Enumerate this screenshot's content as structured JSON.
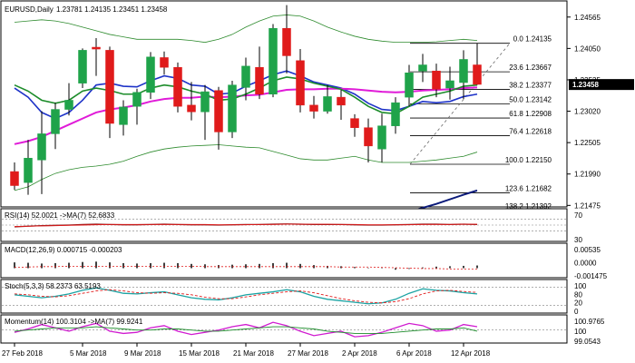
{
  "header": {
    "symbol": "EURUSD,Daily",
    "ohlc": "1.23781 1.24135 1.23451 1.23458"
  },
  "colors": {
    "bull": "#1fa34a",
    "bear": "#e01b1b",
    "ma_blue": "#1e33c8",
    "ma_magenta": "#e01bd8",
    "ma_green": "#1c8c2a",
    "bollinger": "#2e8b2e",
    "navy_line": "#0b1a7a",
    "price_box": "#000000",
    "grid": "#808080",
    "rsi_line": "#8b1a1a",
    "stoch_main": "#1aa3a3",
    "stoch_signal": "#e01b1b",
    "mom_main": "#d01bd0",
    "mom_signal": "#1c8c2a"
  },
  "chart_data": [
    {
      "type": "candlestick",
      "title": "EURUSD,Daily",
      "ylim": [
        1.2148,
        1.248
      ],
      "price_ticks": [
        1.24565,
        1.2405,
        1.23535,
        1.2302,
        1.22505,
        1.2199,
        1.21475
      ],
      "current_price": "1.23458",
      "date_labels": [
        {
          "label": "27 Feb 2018",
          "index": 0
        },
        {
          "label": "5 Mar 2018",
          "index": 5
        },
        {
          "label": "9 Mar 2018",
          "index": 9
        },
        {
          "label": "15 Mar 2018",
          "index": 13
        },
        {
          "label": "21 Mar 2018",
          "index": 17
        },
        {
          "label": "27 Mar 2018",
          "index": 21
        },
        {
          "label": "2 Apr 2018",
          "index": 25
        },
        {
          "label": "6 Apr 2018",
          "index": 29
        },
        {
          "label": "12 Apr 2018",
          "index": 33
        }
      ],
      "candles": [
        {
          "o": 1.2203,
          "h": 1.2218,
          "l": 1.2173,
          "c": 1.218
        },
        {
          "o": 1.2185,
          "h": 1.2255,
          "l": 1.2165,
          "c": 1.2225
        },
        {
          "o": 1.2222,
          "h": 1.2302,
          "l": 1.2166,
          "c": 1.2265
        },
        {
          "o": 1.2265,
          "h": 1.2316,
          "l": 1.224,
          "c": 1.2305
        },
        {
          "o": 1.2305,
          "h": 1.2348,
          "l": 1.2295,
          "c": 1.232
        },
        {
          "o": 1.2348,
          "h": 1.2405,
          "l": 1.234,
          "c": 1.2402
        },
        {
          "o": 1.2407,
          "h": 1.2422,
          "l": 1.236,
          "c": 1.2404
        },
        {
          "o": 1.2402,
          "h": 1.2408,
          "l": 1.2258,
          "c": 1.2282
        },
        {
          "o": 1.228,
          "h": 1.232,
          "l": 1.2262,
          "c": 1.2309
        },
        {
          "o": 1.231,
          "h": 1.2339,
          "l": 1.228,
          "c": 1.2333
        },
        {
          "o": 1.2333,
          "h": 1.2399,
          "l": 1.2322,
          "c": 1.2391
        },
        {
          "o": 1.239,
          "h": 1.24,
          "l": 1.2362,
          "c": 1.2374
        },
        {
          "o": 1.2374,
          "h": 1.2382,
          "l": 1.23,
          "c": 1.231
        },
        {
          "o": 1.2312,
          "h": 1.235,
          "l": 1.2287,
          "c": 1.2301
        },
        {
          "o": 1.2301,
          "h": 1.2345,
          "l": 1.2255,
          "c": 1.2334
        },
        {
          "o": 1.2336,
          "h": 1.2342,
          "l": 1.2239,
          "c": 1.2268
        },
        {
          "o": 1.2268,
          "h": 1.2352,
          "l": 1.2258,
          "c": 1.2345
        },
        {
          "o": 1.2341,
          "h": 1.239,
          "l": 1.232,
          "c": 1.2376
        },
        {
          "o": 1.2374,
          "h": 1.2408,
          "l": 1.2322,
          "c": 1.233
        },
        {
          "o": 1.233,
          "h": 1.2445,
          "l": 1.2325,
          "c": 1.2438
        },
        {
          "o": 1.2438,
          "h": 1.2476,
          "l": 1.2364,
          "c": 1.2393
        },
        {
          "o": 1.2385,
          "h": 1.2404,
          "l": 1.23,
          "c": 1.2312
        },
        {
          "o": 1.2312,
          "h": 1.2327,
          "l": 1.229,
          "c": 1.2302
        },
        {
          "o": 1.2302,
          "h": 1.2345,
          "l": 1.2298,
          "c": 1.2326
        },
        {
          "o": 1.2325,
          "h": 1.2337,
          "l": 1.2288,
          "c": 1.2312
        },
        {
          "o": 1.229,
          "h": 1.2297,
          "l": 1.226,
          "c": 1.2275
        },
        {
          "o": 1.2275,
          "h": 1.229,
          "l": 1.2218,
          "c": 1.2245
        },
        {
          "o": 1.224,
          "h": 1.2298,
          "l": 1.2218,
          "c": 1.2278
        },
        {
          "o": 1.2278,
          "h": 1.2325,
          "l": 1.2265,
          "c": 1.2316
        },
        {
          "o": 1.2325,
          "h": 1.2378,
          "l": 1.231,
          "c": 1.2365
        },
        {
          "o": 1.2368,
          "h": 1.2396,
          "l": 1.235,
          "c": 1.2378
        },
        {
          "o": 1.2368,
          "h": 1.238,
          "l": 1.2325,
          "c": 1.2338
        },
        {
          "o": 1.234,
          "h": 1.2375,
          "l": 1.2321,
          "c": 1.2352
        },
        {
          "o": 1.2349,
          "h": 1.2402,
          "l": 1.2322,
          "c": 1.2387
        },
        {
          "o": 1.2378,
          "h": 1.2413,
          "l": 1.2345,
          "c": 1.2346
        }
      ],
      "overlays": [
        {
          "name": "ma_blue",
          "color": "#1e33c8",
          "values": [
            1.234,
            1.2325,
            1.23,
            1.229,
            1.23,
            1.232,
            1.2345,
            1.2348,
            1.2343,
            1.2342,
            1.2352,
            1.236,
            1.2356,
            1.2345,
            1.2343,
            1.233,
            1.2332,
            1.2343,
            1.2352,
            1.2362,
            1.2368,
            1.236,
            1.235,
            1.2345,
            1.234,
            1.233,
            1.2315,
            1.2305,
            1.2303,
            1.231,
            1.2318,
            1.2316,
            1.2318,
            1.2326,
            1.233
          ]
        },
        {
          "name": "ma_magenta",
          "color": "#e01bd8",
          "values": [
            1.2248,
            1.2253,
            1.226,
            1.227,
            1.228,
            1.229,
            1.23,
            1.2305,
            1.2308,
            1.2312,
            1.2318,
            1.2322,
            1.2324,
            1.2324,
            1.2326,
            1.2325,
            1.2326,
            1.2328,
            1.2329,
            1.2333,
            1.2337,
            1.2338,
            1.2338,
            1.2339,
            1.2339,
            1.2338,
            1.2336,
            1.2334,
            1.2333,
            1.2334,
            1.2336,
            1.2337,
            1.2338,
            1.234,
            1.2341
          ]
        },
        {
          "name": "ma_green",
          "color": "#1c8c2a",
          "values": [
            1.2345,
            1.2335,
            1.232,
            1.2315,
            1.232,
            1.2335,
            1.234,
            1.2336,
            1.233,
            1.233,
            1.234,
            1.2345,
            1.2342,
            1.2335,
            1.233,
            1.232,
            1.2322,
            1.233,
            1.234,
            1.2352,
            1.2358,
            1.2355,
            1.2348,
            1.2343,
            1.2338,
            1.2325,
            1.231,
            1.23,
            1.2298,
            1.231,
            1.2325,
            1.233,
            1.2335,
            1.2343,
            1.2345
          ]
        },
        {
          "name": "bollinger_upper",
          "color": "#2e8b2e",
          "values": [
            1.2448,
            1.245,
            1.2452,
            1.245,
            1.2446,
            1.244,
            1.2434,
            1.2428,
            1.2424,
            1.242,
            1.242,
            1.242,
            1.242,
            1.2418,
            1.2415,
            1.242,
            1.2428,
            1.244,
            1.245,
            1.2458,
            1.246,
            1.2458,
            1.245,
            1.244,
            1.2432,
            1.2425,
            1.242,
            1.2417,
            1.2415,
            1.2415,
            1.2415,
            1.2416,
            1.2418,
            1.242,
            1.2418
          ]
        },
        {
          "name": "bollinger_lower",
          "color": "#2e8b2e",
          "values": [
            1.2172,
            1.2178,
            1.219,
            1.22,
            1.2206,
            1.221,
            1.2212,
            1.2215,
            1.222,
            1.2228,
            1.2235,
            1.224,
            1.2243,
            1.2245,
            1.2246,
            1.2247,
            1.2245,
            1.2243,
            1.2242,
            1.2236,
            1.223,
            1.2224,
            1.2222,
            1.2222,
            1.2225,
            1.2228,
            1.2222,
            1.2218,
            1.2218,
            1.2218,
            1.222,
            1.2222,
            1.2225,
            1.2228,
            1.2235
          ]
        }
      ],
      "navy_line": {
        "color": "#0b1a7a",
        "points": [
          [
            29,
            1.2137
          ],
          [
            31,
            1.215
          ],
          [
            33,
            1.2165
          ],
          [
            34,
            1.2172
          ]
        ]
      },
      "fib_levels": [
        {
          "label": "0.0",
          "value": 1.24135,
          "text": "1.24135"
        },
        {
          "label": "23.6",
          "value": 1.23667,
          "text": "1.23667"
        },
        {
          "label": "38.2",
          "value": 1.23377,
          "text": "1.23377"
        },
        {
          "label": "50.0",
          "value": 1.23142,
          "text": "1.23142"
        },
        {
          "label": "61.8",
          "value": 1.22908,
          "text": "1.22908"
        },
        {
          "label": "76.4",
          "value": 1.22618,
          "text": "1.22618"
        },
        {
          "label": "100.0",
          "value": 1.2215,
          "text": "1.22150"
        },
        {
          "label": "123.6",
          "value": 1.21682,
          "text": "1.21682"
        },
        {
          "label": "138.2",
          "value": 1.21392,
          "text": "1.21392"
        }
      ]
    },
    {
      "type": "line",
      "title": "RSI(14) 52.0021 ->MA(7) 52.6833",
      "ylim": [
        0,
        100
      ],
      "ticks": [
        "70",
        "30"
      ],
      "levels": [
        70,
        50,
        30
      ],
      "series": [
        {
          "color": "#8b1a1a",
          "values": [
            44,
            46,
            48,
            49,
            50,
            52,
            53,
            52,
            51,
            51,
            52,
            53,
            52,
            51,
            51,
            50,
            51,
            52,
            52,
            53,
            54,
            53,
            52,
            52,
            52,
            51,
            50,
            50,
            51,
            52,
            53,
            53,
            52,
            53,
            52
          ]
        },
        {
          "color": "#e01b1b",
          "values": [
            45,
            46,
            47,
            48,
            49,
            50,
            51,
            52,
            52,
            52,
            52,
            52,
            52,
            52,
            52,
            51,
            51,
            51,
            52,
            52,
            53,
            53,
            53,
            53,
            52,
            52,
            51,
            51,
            51,
            51,
            52,
            52,
            52,
            53,
            53
          ]
        }
      ]
    },
    {
      "type": "bar",
      "title": "MACD(12,26,9) 0.000715 -0.000203",
      "ylim": [
        -0.002,
        0.006
      ],
      "ticks": [
        "0.00535",
        "0.0000",
        "-0.001475"
      ],
      "values": [
        0.0015,
        0.0014,
        0.0012,
        0.0013,
        0.0014,
        0.0016,
        0.0017,
        0.0015,
        0.0013,
        0.0012,
        0.0013,
        0.0014,
        0.0013,
        0.0011,
        0.001,
        0.0008,
        0.0009,
        0.001,
        0.0011,
        0.0013,
        0.0014,
        0.0011,
        0.0008,
        0.0006,
        0.0005,
        0.0003,
        0.0001,
        -0.0001,
        -0.0004,
        -0.0002,
        0.0002,
        0.0004,
        0.0005,
        0.0006,
        0.0007
      ],
      "signal": [
        0.0002,
        0.0003,
        0.0004,
        0.0004,
        0.0005,
        0.0005,
        0.0005,
        0.0005,
        0.0005,
        0.0005,
        0.0005,
        0.0005,
        0.0005,
        0.0005,
        0.0004,
        0.0004,
        0.0004,
        0.0004,
        0.0004,
        0.0004,
        0.0004,
        0.0004,
        0.0004,
        0.0004,
        0.0003,
        0.0003,
        0.0003,
        0.0002,
        0.0001,
        0.0,
        -0.0001,
        -0.0001,
        -0.0002,
        -0.0002,
        -0.0002
      ]
    },
    {
      "type": "line",
      "title": "Stoch(5,3,3) 58.2373 63.5193",
      "ylim": [
        0,
        100
      ],
      "ticks": [
        "100",
        "80",
        "20",
        "0"
      ],
      "levels": [
        80,
        20
      ],
      "series": [
        {
          "color": "#1aa3a3",
          "values": [
            55,
            50,
            45,
            50,
            58,
            70,
            78,
            70,
            60,
            58,
            62,
            65,
            55,
            45,
            40,
            38,
            45,
            55,
            60,
            65,
            72,
            65,
            50,
            40,
            35,
            30,
            25,
            28,
            40,
            60,
            75,
            70,
            68,
            62,
            58
          ]
        },
        {
          "color": "#e01b1b",
          "values": [
            58,
            55,
            50,
            48,
            52,
            60,
            68,
            72,
            68,
            62,
            60,
            62,
            60,
            55,
            47,
            42,
            42,
            48,
            55,
            60,
            65,
            68,
            62,
            52,
            42,
            35,
            30,
            28,
            32,
            42,
            58,
            68,
            70,
            66,
            63
          ]
        }
      ]
    },
    {
      "type": "line",
      "title": "Momentum(14) 100.3104 ->MA(7) 99.9241",
      "ylim": [
        99.0,
        101.2
      ],
      "ticks": [
        "100.9765",
        "100",
        "99.0543"
      ],
      "levels": [
        100
      ],
      "series": [
        {
          "color": "#d01bd0",
          "values": [
            99.8,
            100.1,
            100.5,
            100.2,
            99.9,
            100.3,
            100.6,
            99.9,
            99.7,
            99.8,
            100.2,
            100.4,
            99.9,
            99.6,
            99.8,
            100.0,
            100.3,
            100.5,
            100.2,
            100.7,
            100.4,
            99.9,
            99.5,
            99.7,
            99.9,
            99.4,
            99.5,
            99.8,
            100.2,
            100.6,
            100.4,
            99.9,
            100.0,
            100.5,
            100.3
          ]
        },
        {
          "color": "#1c8c2a",
          "values": [
            99.9,
            100.0,
            100.1,
            100.2,
            100.2,
            100.2,
            100.3,
            100.2,
            100.1,
            100.0,
            100.0,
            100.1,
            100.1,
            100.0,
            99.9,
            99.9,
            100.0,
            100.1,
            100.2,
            100.3,
            100.3,
            100.2,
            100.1,
            99.9,
            99.8,
            99.7,
            99.7,
            99.7,
            99.8,
            99.9,
            100.0,
            100.1,
            100.1,
            100.2,
            99.9
          ]
        }
      ]
    }
  ]
}
